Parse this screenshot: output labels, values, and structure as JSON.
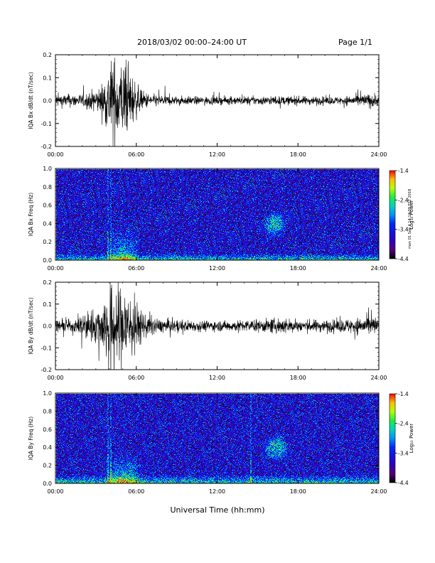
{
  "header": {
    "title": "2018/03/02   00:00–24:00 UT",
    "page": "Page 1/1"
  },
  "xlabel": "Universal Time (hh:mm)",
  "side_note": "mon 01 Sep 4 14:13:09 EST 2018",
  "colorbar": {
    "ticks": [
      "-1.4",
      "-2.4",
      "-3.4",
      "-4.4"
    ],
    "label": "Log₁₀ Power",
    "range": [
      -4.4,
      -1.4
    ]
  },
  "chart_data": [
    {
      "type": "line",
      "ylabel": "IQA Bx dB/dt (nT/sec)",
      "xlim": [
        0,
        24
      ],
      "ylim": [
        -0.2,
        0.2
      ],
      "yticks": [
        "0.2",
        "0.1",
        "0.0",
        "-0.1",
        "-0.2"
      ],
      "xticks": [
        "00:00",
        "06:00",
        "12:00",
        "18:00",
        "24:00"
      ],
      "envelope": {
        "hours": [
          0,
          2,
          3.3,
          3.8,
          4.2,
          4.7,
          5.2,
          5.7,
          6.3,
          7,
          9,
          12,
          15,
          18,
          21,
          23.7,
          24
        ],
        "amplitude": [
          0.03,
          0.03,
          0.06,
          0.13,
          0.2,
          0.2,
          0.17,
          0.12,
          0.05,
          0.03,
          0.02,
          0.018,
          0.02,
          0.02,
          0.018,
          0.035,
          0.02
        ]
      }
    },
    {
      "type": "heatmap",
      "ylabel": "IQA Bx Freq (Hz)",
      "xlim": [
        0,
        24
      ],
      "ylim": [
        0,
        1.0
      ],
      "yticks": [
        "1.0",
        "0.8",
        "0.6",
        "0.4",
        "0.2",
        "0.0"
      ],
      "xticks": [
        "00:00",
        "06:00",
        "12:00",
        "18:00",
        "24:00"
      ],
      "features": {
        "background_log_power": -3.6,
        "low_freq_band_hz": 0.08,
        "storm_hours": [
          3.8,
          6.2
        ],
        "vertical_lines_hours": [
          3.85,
          4.05
        ],
        "pulsation_patch": {
          "hours": [
            15.3,
            17.2
          ],
          "freq_hz": [
            0.25,
            0.55
          ]
        }
      }
    },
    {
      "type": "line",
      "ylabel": "IQA By dB/dt (nT/sec)",
      "xlim": [
        0,
        24
      ],
      "ylim": [
        -0.2,
        0.2
      ],
      "yticks": [
        "0.2",
        "0.1",
        "0.0",
        "-0.1",
        "-0.2"
      ],
      "xticks": [
        "00:00",
        "06:00",
        "12:00",
        "18:00",
        "24:00"
      ],
      "envelope": {
        "hours": [
          0,
          1.5,
          2,
          3,
          3.5,
          4,
          4.5,
          5,
          5.5,
          6,
          6.6,
          7.5,
          9,
          12,
          15,
          16.8,
          18,
          21,
          23.7,
          24
        ],
        "amplitude": [
          0.03,
          0.03,
          0.07,
          0.08,
          0.12,
          0.2,
          0.2,
          0.2,
          0.18,
          0.12,
          0.06,
          0.035,
          0.03,
          0.025,
          0.03,
          0.04,
          0.03,
          0.03,
          0.05,
          0.03
        ]
      }
    },
    {
      "type": "heatmap",
      "ylabel": "IQA By Freq (Hz)",
      "xlim": [
        0,
        24
      ],
      "ylim": [
        0,
        1.0
      ],
      "yticks": [
        "1.0",
        "0.8",
        "0.6",
        "0.4",
        "0.2",
        "0.0"
      ],
      "xticks": [
        "00:00",
        "06:00",
        "12:00",
        "18:00",
        "24:00"
      ],
      "features": {
        "background_log_power": -3.6,
        "low_freq_band_hz": 0.1,
        "storm_hours": [
          3.5,
          6.5
        ],
        "vertical_lines_hours": [
          3.85,
          4.05,
          14.45
        ],
        "pulsation_patch": {
          "hours": [
            15.3,
            17.4
          ],
          "freq_hz": [
            0.25,
            0.55
          ]
        }
      }
    }
  ]
}
